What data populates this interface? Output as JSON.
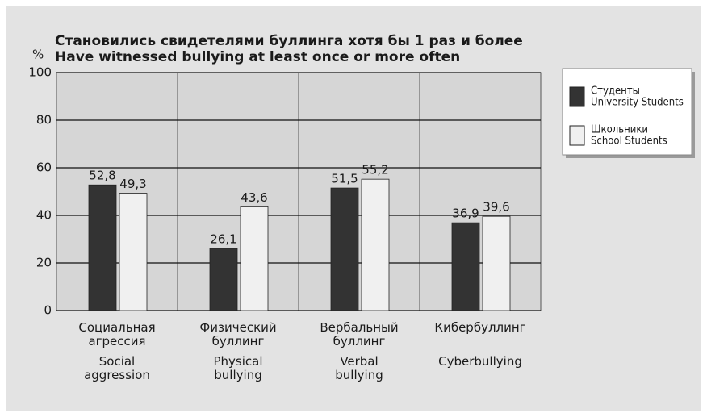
{
  "chart_data": {
    "type": "bar",
    "title": "Становились свидетелями буллинга хотя бы 1 раз и более",
    "subtitle": "Have witnessed bullying at least once or more often",
    "y_label": "%",
    "categories": [
      "Социальная агрессия",
      "Физический буллинг",
      "Вербальный буллинг",
      "Кибербуллинг"
    ],
    "categories_en": [
      "Social aggression",
      "Physical bullying",
      "Verbal bullying",
      "Cyberbullying"
    ],
    "series": [
      {
        "name": "Студенты",
        "name_en": "University Students",
        "color": "#333333",
        "values": [
          52.8,
          26.1,
          51.5,
          36.9
        ],
        "value_labels": [
          "52,8",
          "26,1",
          "51,5",
          "36,9"
        ]
      },
      {
        "name": "Школьники",
        "name_en": "School Students",
        "color": "#f0f0f0",
        "values": [
          49.3,
          43.6,
          55.2,
          39.6
        ],
        "value_labels": [
          "49,3",
          "43,6",
          "55,2",
          "39,6"
        ]
      }
    ],
    "ylim": [
      0,
      100
    ],
    "yticks": [
      0,
      20,
      40,
      60,
      80,
      100
    ],
    "grid": true,
    "legend": "right"
  }
}
